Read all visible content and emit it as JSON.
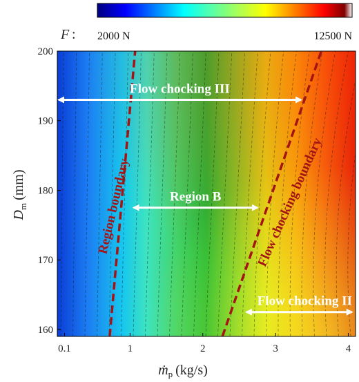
{
  "chart_data": {
    "type": "heatmap",
    "colorbar": {
      "symbol": "F",
      "separator": ":",
      "min_label": "2000 N",
      "max_label": "12500 N",
      "min": 2000,
      "max": 12500,
      "colormap": "jet"
    },
    "xlabel": {
      "symbol": "ṁ",
      "sub": "p",
      "unit": "(kg/s)"
    },
    "ylabel": {
      "symbol": "D",
      "sub": "m",
      "unit": "(mm)"
    },
    "xlim": [
      0.0,
      4.1
    ],
    "ylim": [
      159,
      200
    ],
    "xticks": [
      {
        "value": 0.1,
        "label": "0.1"
      },
      {
        "value": 1,
        "label": "1"
      },
      {
        "value": 2,
        "label": "2"
      },
      {
        "value": 3,
        "label": "3"
      },
      {
        "value": 4,
        "label": "4"
      }
    ],
    "yticks": [
      {
        "value": 160,
        "label": "160"
      },
      {
        "value": 170,
        "label": "170"
      },
      {
        "value": 180,
        "label": "180"
      },
      {
        "value": 190,
        "label": "190"
      },
      {
        "value": 200,
        "label": "200"
      }
    ],
    "boundaries": [
      {
        "label": "Region boundary",
        "color": "#a31515",
        "points": [
          [
            0.72,
            159
          ],
          [
            1.07,
            200
          ]
        ]
      },
      {
        "label": "Flow chocking boundary",
        "color": "#a31515",
        "points": [
          [
            2.27,
            159
          ],
          [
            3.63,
            200
          ]
        ]
      }
    ],
    "annotations": [
      {
        "label": "Flow chocking III",
        "x_range": [
          0.0,
          3.35
        ],
        "y": 193
      },
      {
        "label": "Region B",
        "x_range": [
          1.05,
          2.75
        ],
        "y": 177.5
      },
      {
        "label": "Flow chocking II",
        "x_range": [
          2.6,
          4.05
        ],
        "y": 162.5
      }
    ]
  }
}
